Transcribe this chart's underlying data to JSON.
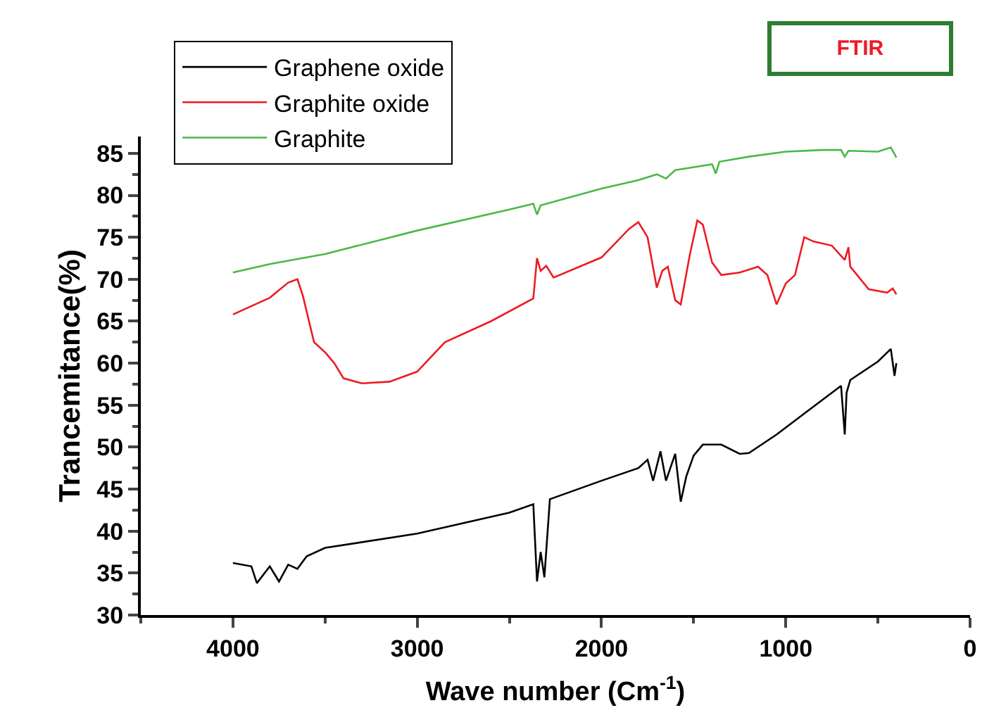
{
  "chart_data": {
    "type": "line",
    "xlabel": "Wave number (Cm$^{-1}$)",
    "ylabel": "Trancemitance(%)",
    "annotations": [
      "FTIR"
    ],
    "xlim": [
      4500,
      0
    ],
    "xticks": [
      4000,
      3000,
      2000,
      1000,
      0
    ],
    "ylim": [
      30,
      87
    ],
    "yticks": [
      30,
      35,
      40,
      45,
      50,
      55,
      60,
      65,
      70,
      75,
      80,
      85
    ],
    "legend": "top left",
    "line_style": "solid",
    "marker": "none",
    "series": [
      {
        "name": "Graphene oxide",
        "color": "#000000",
        "x": [
          4000,
          3900,
          3870,
          3800,
          3750,
          3700,
          3650,
          3600,
          3500,
          3000,
          2500,
          2370,
          2350,
          2330,
          2310,
          2280,
          2000,
          1800,
          1750,
          1720,
          1680,
          1650,
          1600,
          1570,
          1540,
          1500,
          1450,
          1350,
          1250,
          1200,
          1050,
          900,
          700,
          680,
          670,
          650,
          500,
          430,
          410,
          400
        ],
        "values": [
          36.2,
          35.8,
          33.8,
          35.8,
          34.0,
          36.0,
          35.5,
          37.0,
          38.0,
          39.7,
          42.2,
          43.2,
          34.0,
          37.5,
          34.5,
          43.8,
          46.0,
          47.5,
          48.5,
          46.0,
          49.5,
          46.0,
          49.2,
          43.5,
          46.5,
          49.0,
          50.3,
          50.3,
          49.2,
          49.3,
          51.5,
          54.0,
          57.3,
          51.5,
          56.5,
          58.0,
          60.2,
          61.7,
          58.5,
          60.0
        ]
      },
      {
        "name": "Graphite oxide",
        "color": "#ed1c24",
        "x": [
          4000,
          3800,
          3700,
          3650,
          3620,
          3560,
          3500,
          3450,
          3400,
          3300,
          3150,
          3000,
          2850,
          2600,
          2370,
          2350,
          2330,
          2300,
          2260,
          2000,
          1850,
          1800,
          1750,
          1700,
          1670,
          1640,
          1600,
          1570,
          1520,
          1480,
          1450,
          1400,
          1350,
          1250,
          1150,
          1100,
          1050,
          1000,
          950,
          900,
          850,
          750,
          680,
          660,
          650,
          550,
          450,
          420,
          400
        ],
        "values": [
          65.8,
          67.8,
          69.6,
          70.0,
          68.0,
          62.5,
          61.3,
          60.0,
          58.2,
          57.6,
          57.8,
          59.0,
          62.5,
          65.0,
          67.7,
          72.5,
          71.0,
          71.6,
          70.2,
          72.6,
          76.0,
          76.8,
          75.0,
          69.0,
          71.0,
          71.5,
          67.5,
          67.0,
          73.0,
          77.0,
          76.5,
          72.0,
          70.5,
          70.8,
          71.5,
          70.5,
          67.0,
          69.5,
          70.5,
          75.0,
          74.5,
          74.0,
          72.3,
          73.8,
          71.5,
          68.8,
          68.4,
          68.9,
          68.2
        ]
      },
      {
        "name": "Graphite",
        "color": "#4cb849",
        "x": [
          4000,
          3800,
          3500,
          3000,
          2500,
          2370,
          2350,
          2330,
          2000,
          1800,
          1700,
          1650,
          1600,
          1400,
          1380,
          1360,
          1200,
          1000,
          800,
          700,
          680,
          660,
          500,
          430,
          400
        ],
        "values": [
          70.8,
          71.8,
          73.0,
          75.8,
          78.3,
          79.0,
          77.7,
          78.8,
          80.8,
          81.8,
          82.5,
          82.0,
          83.0,
          83.7,
          82.6,
          84.0,
          84.6,
          85.2,
          85.4,
          85.4,
          84.6,
          85.3,
          85.2,
          85.7,
          84.5
        ]
      }
    ]
  }
}
